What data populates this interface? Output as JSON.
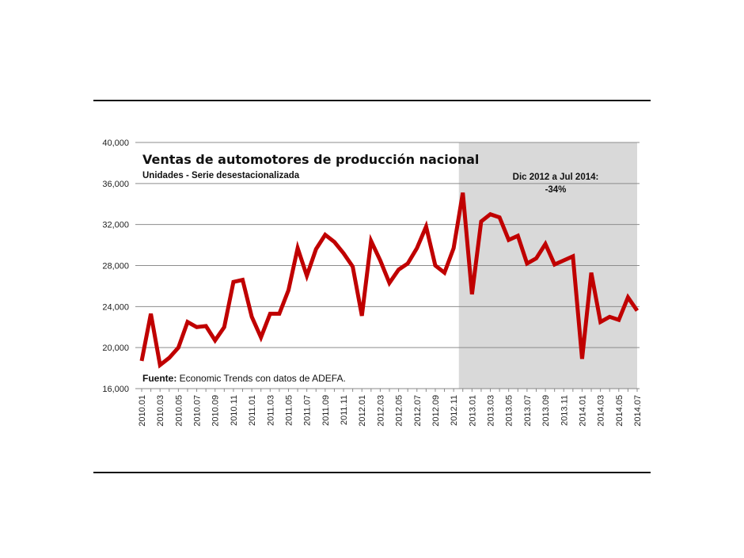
{
  "chart_data": {
    "type": "line",
    "title": "Ventas de automotores  de producción  nacional",
    "subtitle": "Unidades - Serie desestacionalizada",
    "source_label": "Fuente:",
    "source_text": " Economic Trends con datos de ADEFA.",
    "annotation": [
      "Dic 2012  a Jul 2014:",
      "-34%"
    ],
    "highlight_range": [
      "2012.12",
      "2014.07"
    ],
    "ylim": [
      16000,
      40000
    ],
    "yticks": [
      "16,000",
      "20,000",
      "24,000",
      "28,000",
      "32,000",
      "36,000",
      "40,000"
    ],
    "grid": true,
    "colors": {
      "line": "#c00000",
      "highlight": "#d9d9d9",
      "grid": "#8c8c8c"
    },
    "x": [
      "2010.01",
      "2010.02",
      "2010.03",
      "2010.04",
      "2010.05",
      "2010.06",
      "2010.07",
      "2010.08",
      "2010.09",
      "2010.10",
      "2010.11",
      "2010.12",
      "2011.01",
      "2011.02",
      "2011.03",
      "2011.04",
      "2011.05",
      "2011.06",
      "2011.07",
      "2011.08",
      "2011.09",
      "2011.10",
      "2011.11",
      "2011.12",
      "2012.01",
      "2012.02",
      "2012.03",
      "2012.04",
      "2012.05",
      "2012.06",
      "2012.07",
      "2012.08",
      "2012.09",
      "2012.10",
      "2012.11",
      "2012.12",
      "2013.01",
      "2013.02",
      "2013.03",
      "2013.04",
      "2013.05",
      "2013.06",
      "2013.07",
      "2013.08",
      "2013.09",
      "2013.10",
      "2013.11",
      "2013.12",
      "2014.01",
      "2014.02",
      "2014.03",
      "2014.04",
      "2014.05",
      "2014.06",
      "2014.07"
    ],
    "values": [
      18700,
      23300,
      18300,
      19000,
      20000,
      22500,
      22000,
      22100,
      20700,
      22000,
      26400,
      26600,
      23000,
      21000,
      23300,
      23300,
      25600,
      29700,
      27000,
      29600,
      31000,
      30300,
      29200,
      27900,
      23100,
      30400,
      28500,
      26300,
      27600,
      28200,
      29700,
      31800,
      28000,
      27300,
      29700,
      35100,
      25200,
      32300,
      33000,
      32700,
      30500,
      30900,
      28200,
      28700,
      30100,
      28100,
      28500,
      28900,
      18900,
      27300,
      22500,
      23000,
      22700,
      24900,
      23600
    ]
  }
}
